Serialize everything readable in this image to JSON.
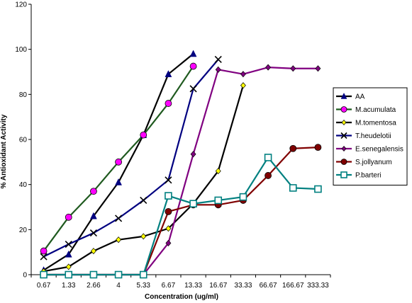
{
  "chart_data": {
    "type": "line",
    "xlabel": "Concentration (ug/ml)",
    "ylabel": "% Antioxidant Activity",
    "ylim": [
      0,
      120
    ],
    "yticks": [
      0,
      20,
      40,
      60,
      80,
      100,
      120
    ],
    "categories": [
      "0.67",
      "1.33",
      "2.66",
      "4",
      "5.33",
      "6.67",
      "13.33",
      "16.67",
      "33.33",
      "66.67",
      "166.67",
      "333.33"
    ],
    "grid": false,
    "legend_position": "right",
    "series": [
      {
        "name": "AA",
        "color": "#000080",
        "line_color": "#000000",
        "marker": "triangle",
        "values": [
          2,
          9,
          26,
          41,
          62,
          89,
          98,
          null,
          null,
          null,
          null,
          null
        ]
      },
      {
        "name": "M.acumulata",
        "color": "#ff00ff",
        "line_color": "#1f5a1f",
        "marker": "circle",
        "values": [
          10.5,
          25.5,
          37,
          50,
          62,
          76,
          92.5,
          null,
          null,
          null,
          null,
          null
        ]
      },
      {
        "name": "M.tomentosa",
        "color": "#ffff00",
        "line_color": "#000000",
        "marker": "diamond",
        "values": [
          1.5,
          3.5,
          10.5,
          15.5,
          17,
          20.5,
          31.5,
          46,
          84,
          null,
          null,
          null
        ]
      },
      {
        "name": "T.heudelotii",
        "color": "#000000",
        "line_color": "#000080",
        "marker": "x",
        "values": [
          8,
          13.5,
          18.5,
          25,
          33,
          42,
          82.5,
          95.5,
          null,
          null,
          null,
          null
        ]
      },
      {
        "name": "E.senegalensis",
        "color": "#800080",
        "line_color": "#800080",
        "marker": "diamond",
        "values": [
          0,
          0,
          0,
          0,
          0,
          14,
          53.5,
          91,
          89,
          92,
          91.5,
          91.5
        ]
      },
      {
        "name": "S.jollyanum",
        "color": "#800000",
        "line_color": "#800000",
        "marker": "circle",
        "values": [
          0,
          0,
          0,
          0,
          0,
          28,
          31,
          31,
          33,
          44,
          56,
          56.5
        ]
      },
      {
        "name": "P.barteri",
        "color": "#008080",
        "line_color": "#008080",
        "marker": "square",
        "values": [
          0,
          0,
          0,
          0,
          0,
          35,
          31.5,
          33,
          34.5,
          52,
          38.5,
          38
        ]
      }
    ]
  }
}
